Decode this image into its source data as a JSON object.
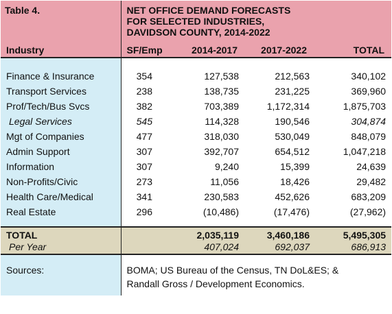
{
  "table": {
    "label": "Table 4.",
    "title_lines": [
      "NET OFFICE DEMAND FORECASTS",
      "FOR SELECTED INDUSTRIES,",
      "DAVIDSON COUNTY, 2014-2022"
    ]
  },
  "columns": {
    "industry": "Industry",
    "sf_emp": "SF/Emp",
    "p1": "2014-2017",
    "p2": "2017-2022",
    "total": "TOTAL"
  },
  "rows": [
    {
      "industry": "Finance & Insurance",
      "sf_emp": "354",
      "p1": "127,538",
      "p2": "212,563",
      "total": "340,102",
      "italic": false
    },
    {
      "industry": "Transport Services",
      "sf_emp": "238",
      "p1": "138,735",
      "p2": "231,225",
      "total": "369,960",
      "italic": false
    },
    {
      "industry": "Prof/Tech/Bus Svcs",
      "sf_emp": "382",
      "p1": "703,389",
      "p2": "1,172,314",
      "total": "1,875,703",
      "italic": false
    },
    {
      "industry": "Legal Services",
      "sf_emp": "545",
      "p1": "114,328",
      "p2": "190,546",
      "total": "304,874",
      "italic": true
    },
    {
      "industry": "Mgt of Companies",
      "sf_emp": "477",
      "p1": "318,030",
      "p2": "530,049",
      "total": "848,079",
      "italic": false
    },
    {
      "industry": "Admin Support",
      "sf_emp": "307",
      "p1": "392,707",
      "p2": "654,512",
      "total": "1,047,218",
      "italic": false
    },
    {
      "industry": "Information",
      "sf_emp": "307",
      "p1": "9,240",
      "p2": "15,399",
      "total": "24,639",
      "italic": false
    },
    {
      "industry": "Non-Profits/Civic",
      "sf_emp": "273",
      "p1": "11,056",
      "p2": "18,426",
      "total": "29,482",
      "italic": false
    },
    {
      "industry": "Health Care/Medical",
      "sf_emp": "341",
      "p1": "230,583",
      "p2": "452,626",
      "total": "683,209",
      "italic": false
    },
    {
      "industry": "Real Estate",
      "sf_emp": "296",
      "p1": "(10,486)",
      "p2": "(17,476)",
      "total": "(27,962)",
      "italic": false
    }
  ],
  "totals": {
    "label": "TOTAL",
    "p1": "2,035,119",
    "p2": "3,460,186",
    "total": "5,495,305",
    "per_year_label": "Per Year",
    "per_year_p1": "407,024",
    "per_year_p2": "692,037",
    "per_year_total": "686,913"
  },
  "sources": {
    "label": "Sources:",
    "text_lines": [
      "BOMA; US Bureau of the Census, TN DoL&ES; &",
      "Randall Gross / Development Economics."
    ]
  },
  "colors": {
    "header_pink": "#eaa2ad",
    "industry_blue": "#d4edf6",
    "totals_tan": "#ddd7bd"
  }
}
